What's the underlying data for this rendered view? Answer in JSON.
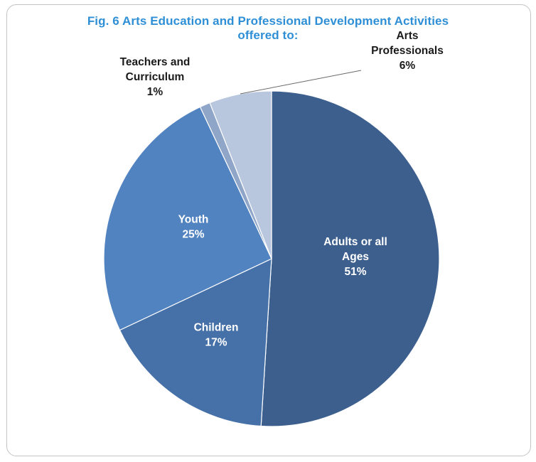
{
  "chart_data": {
    "type": "pie",
    "title_lines": [
      "Fig. 6 Arts Education and Professional Development  Activities",
      "offered to:"
    ],
    "slices": [
      {
        "label_lines": [
          "Adults or all",
          "Ages"
        ],
        "pct_label": "51%",
        "value": 51,
        "color": "#3d5f8e",
        "label_color": "#ffffff"
      },
      {
        "label_lines": [
          "Children"
        ],
        "pct_label": "17%",
        "value": 17,
        "color": "#4671a8",
        "label_color": "#ffffff"
      },
      {
        "label_lines": [
          "Youth"
        ],
        "pct_label": "25%",
        "value": 25,
        "color": "#5283c1",
        "label_color": "#ffffff"
      },
      {
        "label_lines": [
          "Teachers and",
          "Curriculum"
        ],
        "pct_label": "1%",
        "value": 1,
        "color": "#8fa6c8",
        "label_color": "#1a1a1a"
      },
      {
        "label_lines": [
          "Arts",
          "Professionals"
        ],
        "pct_label": "6%",
        "value": 6,
        "color": "#b9c7de",
        "label_color": "#1a1a1a"
      }
    ]
  }
}
